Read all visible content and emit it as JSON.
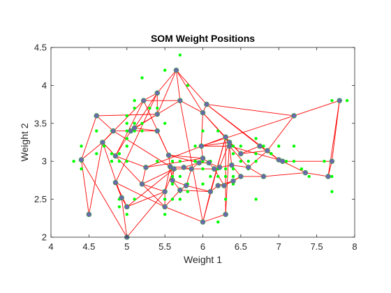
{
  "chart_data": {
    "type": "scatter",
    "title": "SOM Weight Positions",
    "xlabel": "Weight 1",
    "ylabel": "Weight 2",
    "xlim": [
      4,
      8
    ],
    "ylim": [
      2,
      4.5
    ],
    "xticks": [
      "4",
      "4.5",
      "5",
      "5.5",
      "6",
      "6.5",
      "7",
      "7.5",
      "8"
    ],
    "yticks": [
      "2",
      "2.5",
      "3",
      "3.5",
      "4",
      "4.5"
    ],
    "grid": false,
    "colors": {
      "data_points": "#00ff00",
      "neurons": "#6b66b0",
      "neuron_edge": "#4a9a5a",
      "links": "#ff0000"
    },
    "series": [
      {
        "role": "input-data",
        "points": [
          [
            4.3,
            3.0
          ],
          [
            4.4,
            2.9
          ],
          [
            4.4,
            3.0
          ],
          [
            4.4,
            3.2
          ],
          [
            4.5,
            2.3
          ],
          [
            4.6,
            3.1
          ],
          [
            4.6,
            3.4
          ],
          [
            4.7,
            3.2
          ],
          [
            4.8,
            3.0
          ],
          [
            4.8,
            3.1
          ],
          [
            4.8,
            3.4
          ],
          [
            4.9,
            2.4
          ],
          [
            4.9,
            3.0
          ],
          [
            4.9,
            3.1
          ],
          [
            4.9,
            2.5
          ],
          [
            5.0,
            2.0
          ],
          [
            5.0,
            2.3
          ],
          [
            5.0,
            3.0
          ],
          [
            5.0,
            3.2
          ],
          [
            5.0,
            3.3
          ],
          [
            5.0,
            3.4
          ],
          [
            5.0,
            3.5
          ],
          [
            5.0,
            3.6
          ],
          [
            5.1,
            2.5
          ],
          [
            5.1,
            3.4
          ],
          [
            5.1,
            3.5
          ],
          [
            5.1,
            3.7
          ],
          [
            5.1,
            3.8
          ],
          [
            5.2,
            2.7
          ],
          [
            5.2,
            3.4
          ],
          [
            5.2,
            3.5
          ],
          [
            5.2,
            4.1
          ],
          [
            5.3,
            3.7
          ],
          [
            5.4,
            3.0
          ],
          [
            5.4,
            3.4
          ],
          [
            5.4,
            3.7
          ],
          [
            5.4,
            3.9
          ],
          [
            5.5,
            2.3
          ],
          [
            5.5,
            2.4
          ],
          [
            5.5,
            2.5
          ],
          [
            5.5,
            2.6
          ],
          [
            5.5,
            3.5
          ],
          [
            5.5,
            4.2
          ],
          [
            5.6,
            2.5
          ],
          [
            5.6,
            2.7
          ],
          [
            5.6,
            2.8
          ],
          [
            5.6,
            2.9
          ],
          [
            5.6,
            3.0
          ],
          [
            5.7,
            2.5
          ],
          [
            5.7,
            2.6
          ],
          [
            5.7,
            2.8
          ],
          [
            5.7,
            3.0
          ],
          [
            5.7,
            3.8
          ],
          [
            5.7,
            4.4
          ],
          [
            5.8,
            2.6
          ],
          [
            5.8,
            2.7
          ],
          [
            5.8,
            4.0
          ],
          [
            5.9,
            3.0
          ],
          [
            5.9,
            3.2
          ],
          [
            6.0,
            2.2
          ],
          [
            6.0,
            2.7
          ],
          [
            6.0,
            2.9
          ],
          [
            6.0,
            3.0
          ],
          [
            6.0,
            3.4
          ],
          [
            6.1,
            2.6
          ],
          [
            6.1,
            2.8
          ],
          [
            6.1,
            3.0
          ],
          [
            6.2,
            2.8
          ],
          [
            6.2,
            2.9
          ],
          [
            6.2,
            3.4
          ],
          [
            6.3,
            2.3
          ],
          [
            6.3,
            2.5
          ],
          [
            6.3,
            2.9
          ],
          [
            6.3,
            3.3
          ],
          [
            6.4,
            2.7
          ],
          [
            6.4,
            2.8
          ],
          [
            6.4,
            3.1
          ],
          [
            6.4,
            3.2
          ],
          [
            6.5,
            2.8
          ],
          [
            6.5,
            3.0
          ],
          [
            6.5,
            3.2
          ],
          [
            6.6,
            2.9
          ],
          [
            6.6,
            3.0
          ],
          [
            6.7,
            2.5
          ],
          [
            6.7,
            3.1
          ],
          [
            6.7,
            3.3
          ],
          [
            6.8,
            2.8
          ],
          [
            6.8,
            3.2
          ],
          [
            6.9,
            3.1
          ],
          [
            7.0,
            3.2
          ],
          [
            7.1,
            3.0
          ],
          [
            7.2,
            3.0
          ],
          [
            7.2,
            3.2
          ],
          [
            7.2,
            3.6
          ],
          [
            7.3,
            2.9
          ],
          [
            7.4,
            2.8
          ],
          [
            7.6,
            3.0
          ],
          [
            7.7,
            2.6
          ],
          [
            7.7,
            2.8
          ],
          [
            7.7,
            3.8
          ],
          [
            7.9,
            3.8
          ],
          [
            6.1,
            3.0
          ],
          [
            6.3,
            2.8
          ],
          [
            5.9,
            3.0
          ],
          [
            6.4,
            2.9
          ],
          [
            5.8,
            2.7
          ],
          [
            6.2,
            2.2
          ],
          [
            6.9,
            3.1
          ],
          [
            6.7,
            3.0
          ],
          [
            6.5,
            3.0
          ]
        ]
      },
      {
        "role": "neurons",
        "points": [
          [
            4.4,
            3.02
          ],
          [
            4.5,
            2.3
          ],
          [
            4.6,
            3.6
          ],
          [
            4.68,
            3.25
          ],
          [
            4.82,
            3.4
          ],
          [
            4.85,
            2.72
          ],
          [
            4.93,
            2.52
          ],
          [
            4.85,
            3.07
          ],
          [
            5.0,
            2.0
          ],
          [
            5.0,
            2.4
          ],
          [
            5.05,
            3.4
          ],
          [
            5.1,
            3.44
          ],
          [
            5.2,
            2.7
          ],
          [
            5.22,
            3.8
          ],
          [
            5.25,
            2.92
          ],
          [
            5.4,
            3.9
          ],
          [
            5.4,
            3.62
          ],
          [
            5.4,
            3.4
          ],
          [
            5.5,
            2.4
          ],
          [
            5.5,
            2.6
          ],
          [
            5.55,
            3.08
          ],
          [
            5.57,
            2.93
          ],
          [
            5.62,
            2.9
          ],
          [
            5.6,
            2.75
          ],
          [
            5.65,
            4.2
          ],
          [
            5.7,
            2.62
          ],
          [
            5.7,
            3.8
          ],
          [
            5.75,
            2.92
          ],
          [
            5.78,
            2.68
          ],
          [
            5.85,
            2.9
          ],
          [
            5.95,
            2.98
          ],
          [
            6.0,
            3.04
          ],
          [
            5.98,
            3.2
          ],
          [
            6.0,
            2.2
          ],
          [
            6.0,
            3.64
          ],
          [
            6.05,
            3.75
          ],
          [
            6.08,
            2.98
          ],
          [
            6.1,
            2.6
          ],
          [
            6.15,
            2.9
          ],
          [
            6.2,
            2.68
          ],
          [
            6.22,
            2.92
          ],
          [
            6.28,
            2.68
          ],
          [
            6.3,
            2.3
          ],
          [
            6.3,
            3.32
          ],
          [
            6.35,
            3.25
          ],
          [
            6.35,
            3.2
          ],
          [
            6.38,
            2.95
          ],
          [
            6.4,
            2.74
          ],
          [
            6.5,
            2.8
          ],
          [
            6.5,
            3.1
          ],
          [
            6.6,
            2.92
          ],
          [
            6.75,
            3.2
          ],
          [
            6.8,
            2.8
          ],
          [
            6.85,
            3.14
          ],
          [
            7.0,
            3.02
          ],
          [
            7.05,
            3.0
          ],
          [
            7.2,
            3.6
          ],
          [
            7.35,
            2.85
          ],
          [
            7.65,
            2.8
          ],
          [
            7.7,
            3.0
          ],
          [
            7.8,
            3.8
          ]
        ]
      }
    ],
    "links": [
      [
        0,
        1
      ],
      [
        0,
        2
      ],
      [
        0,
        3
      ],
      [
        0,
        8
      ],
      [
        1,
        3
      ],
      [
        2,
        4
      ],
      [
        2,
        16
      ],
      [
        3,
        4
      ],
      [
        3,
        6
      ],
      [
        3,
        12
      ],
      [
        4,
        10
      ],
      [
        4,
        21
      ],
      [
        5,
        6
      ],
      [
        5,
        9
      ],
      [
        5,
        15
      ],
      [
        5,
        18
      ],
      [
        6,
        9
      ],
      [
        7,
        3
      ],
      [
        7,
        10
      ],
      [
        7,
        13
      ],
      [
        8,
        6
      ],
      [
        8,
        19
      ],
      [
        9,
        22
      ],
      [
        9,
        19
      ],
      [
        10,
        11
      ],
      [
        10,
        17
      ],
      [
        10,
        16
      ],
      [
        11,
        16
      ],
      [
        12,
        19
      ],
      [
        12,
        22
      ],
      [
        13,
        15
      ],
      [
        13,
        20
      ],
      [
        13,
        26
      ],
      [
        14,
        12
      ],
      [
        14,
        7
      ],
      [
        14,
        31
      ],
      [
        15,
        16
      ],
      [
        15,
        24
      ],
      [
        16,
        24
      ],
      [
        16,
        26
      ],
      [
        17,
        11
      ],
      [
        17,
        20
      ],
      [
        18,
        19
      ],
      [
        18,
        33
      ],
      [
        18,
        25
      ],
      [
        19,
        21
      ],
      [
        19,
        22
      ],
      [
        20,
        30
      ],
      [
        20,
        21
      ],
      [
        21,
        22
      ],
      [
        21,
        23
      ],
      [
        21,
        27
      ],
      [
        22,
        23
      ],
      [
        22,
        29
      ],
      [
        23,
        28
      ],
      [
        23,
        25
      ],
      [
        24,
        26
      ],
      [
        24,
        34
      ],
      [
        25,
        28
      ],
      [
        26,
        34
      ],
      [
        27,
        29
      ],
      [
        27,
        30
      ],
      [
        28,
        37
      ],
      [
        28,
        29
      ],
      [
        29,
        30
      ],
      [
        29,
        38
      ],
      [
        30,
        31
      ],
      [
        30,
        36
      ],
      [
        31,
        32
      ],
      [
        31,
        36
      ],
      [
        32,
        34
      ],
      [
        32,
        45
      ],
      [
        33,
        37
      ],
      [
        33,
        42
      ],
      [
        33,
        43
      ],
      [
        34,
        35
      ],
      [
        34,
        49
      ],
      [
        35,
        51
      ],
      [
        35,
        54
      ],
      [
        36,
        38
      ],
      [
        36,
        40
      ],
      [
        37,
        39
      ],
      [
        37,
        43
      ],
      [
        38,
        40
      ],
      [
        38,
        41
      ],
      [
        39,
        41
      ],
      [
        39,
        47
      ],
      [
        40,
        44
      ],
      [
        40,
        46
      ],
      [
        41,
        47
      ],
      [
        42,
        43
      ],
      [
        42,
        44
      ],
      [
        43,
        45
      ],
      [
        44,
        49
      ],
      [
        45,
        46
      ],
      [
        45,
        50
      ],
      [
        46,
        48
      ],
      [
        47,
        48
      ],
      [
        48,
        52
      ],
      [
        49,
        51
      ],
      [
        50,
        52
      ],
      [
        50,
        53
      ],
      [
        51,
        54
      ],
      [
        52,
        57
      ],
      [
        53,
        54
      ],
      [
        53,
        56
      ],
      [
        54,
        55
      ],
      [
        55,
        57
      ],
      [
        55,
        59
      ],
      [
        56,
        60
      ],
      [
        57,
        58
      ],
      [
        58,
        59
      ],
      [
        59,
        60
      ],
      [
        56,
        35
      ],
      [
        60,
        58
      ],
      [
        46,
        50
      ],
      [
        11,
        15
      ],
      [
        26,
        33
      ],
      [
        25,
        37
      ],
      [
        44,
        32
      ],
      [
        20,
        31
      ],
      [
        3,
        13
      ],
      [
        12,
        18
      ],
      [
        24,
        35
      ],
      [
        34,
        44
      ],
      [
        49,
        53
      ],
      [
        43,
        14
      ],
      [
        32,
        56
      ],
      [
        41,
        48
      ],
      [
        45,
        54
      ]
    ]
  }
}
